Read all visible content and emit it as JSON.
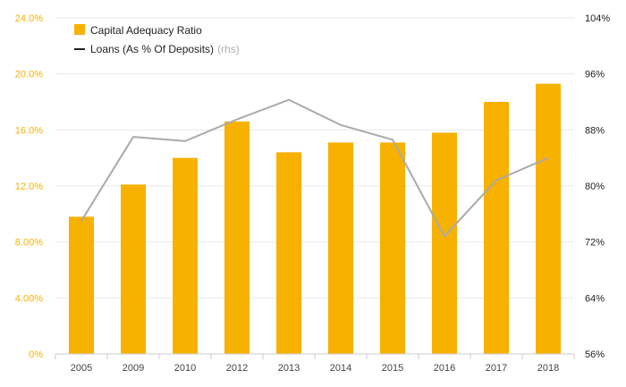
{
  "chart_data": {
    "type": "bar",
    "categories": [
      "2005",
      "2009",
      "2010",
      "2012",
      "2013",
      "2014",
      "2015",
      "2016",
      "2017",
      "2018"
    ],
    "series": [
      {
        "name": "Capital Adequacy Ratio",
        "type": "bar",
        "axis": "left",
        "color": "#F7B100",
        "values": [
          9.8,
          12.1,
          14.0,
          16.6,
          14.4,
          15.1,
          15.1,
          15.8,
          18.0,
          19.3
        ]
      },
      {
        "name": "Loans (As % Of Deposits)",
        "name_suffix": "(rhs)",
        "type": "line",
        "axis": "right",
        "color": "#aaaaaa",
        "values": [
          75.0,
          87.0,
          86.4,
          89.5,
          92.3,
          88.7,
          86.6,
          72.8,
          80.8,
          84.0
        ]
      }
    ],
    "y_left": {
      "lim": [
        0,
        24
      ],
      "ticks": [
        0,
        4,
        8,
        12,
        16,
        20,
        24
      ],
      "tick_labels": [
        "0%",
        "4.00%",
        "8.00%",
        "12.0%",
        "16.0%",
        "20.0%",
        "24.0%"
      ],
      "color": "#F7B100"
    },
    "y_right": {
      "lim": [
        56,
        104
      ],
      "ticks": [
        56,
        64,
        72,
        80,
        88,
        96,
        104
      ],
      "tick_labels": [
        "56%",
        "64%",
        "72%",
        "80%",
        "88%",
        "96%",
        "104%"
      ]
    },
    "grid": true,
    "legend_position": "top-left",
    "title": "",
    "xlabel": "",
    "ylabel": ""
  }
}
